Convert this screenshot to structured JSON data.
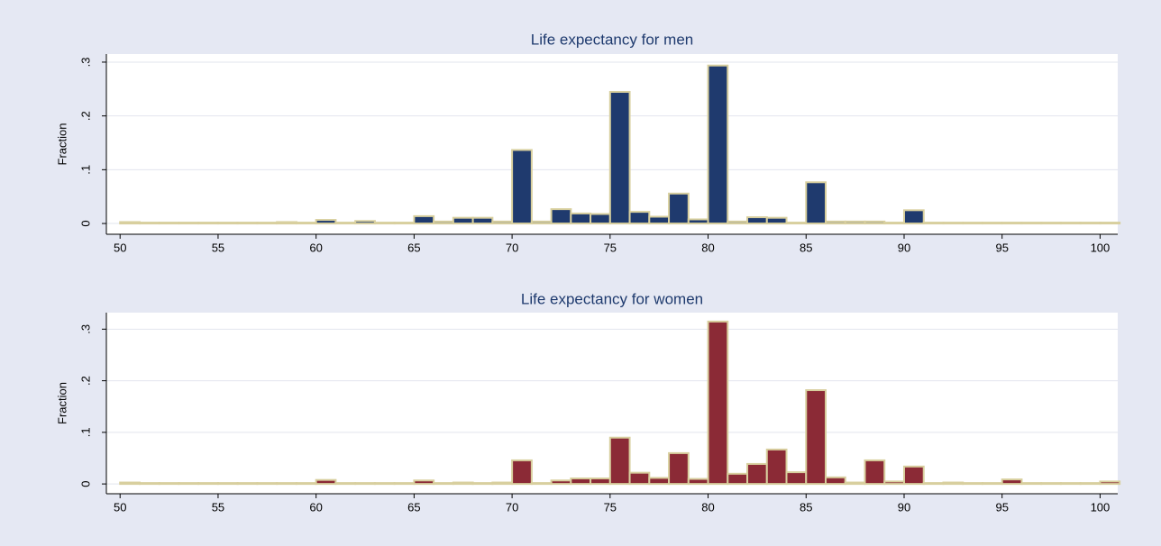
{
  "chart_data": [
    {
      "type": "histogram",
      "title": "Life expectancy for men",
      "ylabel": "Fraction",
      "bins": [
        50,
        51,
        52,
        53,
        54,
        55,
        56,
        57,
        58,
        59,
        60,
        61,
        62,
        63,
        64,
        65,
        66,
        67,
        68,
        69,
        70,
        71,
        72,
        73,
        74,
        75,
        76,
        77,
        78,
        79,
        80,
        81,
        82,
        83,
        84,
        85,
        86,
        87,
        88,
        89,
        90,
        91,
        92,
        93,
        94,
        95,
        96,
        97,
        98,
        99,
        100,
        101
      ],
      "values": [
        0.001,
        0,
        0,
        0,
        0,
        0,
        0,
        0,
        0.001,
        0,
        0.005,
        0,
        0.003,
        0,
        0,
        0.012,
        0.002,
        0.009,
        0.009,
        0.002,
        0.135,
        0.002,
        0.025,
        0.017,
        0.016,
        0.243,
        0.02,
        0.011,
        0.054,
        0.006,
        0.292,
        0.002,
        0.01,
        0.009,
        0,
        0.075,
        0.002,
        0.002,
        0.002,
        0,
        0.023,
        0,
        0,
        0,
        0,
        0,
        0,
        0,
        0,
        0,
        0
      ],
      "color": "#1f3a6e",
      "edgecolor": "#d8cf9e",
      "xlim": [
        49.3,
        100.9
      ],
      "xticks": [
        50,
        55,
        60,
        65,
        70,
        75,
        80,
        85,
        90,
        95,
        100
      ],
      "ylim": [
        -0.02,
        0.315
      ],
      "yticks": [
        0,
        {
          "value": 0.1,
          "label": ".1"
        },
        {
          "value": 0.2,
          "label": ".2"
        },
        {
          "value": 0.3,
          "label": ".3"
        }
      ],
      "grid": true
    },
    {
      "type": "histogram",
      "title": "Life expectancy for women",
      "ylabel": "Fraction",
      "bins": [
        50,
        51,
        52,
        53,
        54,
        55,
        56,
        57,
        58,
        59,
        60,
        61,
        62,
        63,
        64,
        65,
        66,
        67,
        68,
        69,
        70,
        71,
        72,
        73,
        74,
        75,
        76,
        77,
        78,
        79,
        80,
        81,
        82,
        83,
        84,
        85,
        86,
        87,
        88,
        89,
        90,
        91,
        92,
        93,
        94,
        95,
        96,
        97,
        98,
        99,
        100,
        101
      ],
      "values": [
        0.001,
        0,
        0,
        0,
        0,
        0,
        0,
        0,
        0,
        0,
        0.006,
        0,
        0,
        0,
        0,
        0.005,
        0,
        0.001,
        0,
        0.001,
        0.044,
        0,
        0.005,
        0.009,
        0.009,
        0.088,
        0.02,
        0.01,
        0.058,
        0.008,
        0.313,
        0.018,
        0.037,
        0.065,
        0.021,
        0.18,
        0.011,
        0.001,
        0.044,
        0.003,
        0.032,
        0,
        0.001,
        0,
        0,
        0.007,
        0,
        0,
        0,
        0,
        0.003
      ],
      "color": "#8b2a36",
      "edgecolor": "#d8cf9e",
      "xlim": [
        49.3,
        100.9
      ],
      "xticks": [
        50,
        55,
        60,
        65,
        70,
        75,
        80,
        85,
        90,
        95,
        100
      ],
      "ylim": [
        -0.019,
        0.332
      ],
      "yticks": [
        0,
        {
          "value": 0.1,
          "label": ".1"
        },
        {
          "value": 0.2,
          "label": ".2"
        },
        {
          "value": 0.3,
          "label": ".3"
        }
      ],
      "grid": true
    }
  ]
}
